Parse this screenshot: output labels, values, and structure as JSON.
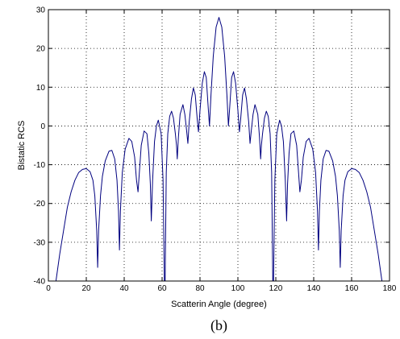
{
  "chart_data": {
    "type": "line",
    "title": "",
    "xlabel": "Scatterin Angle (degree)",
    "ylabel": "Bistatic RCS",
    "xlim": [
      0,
      180
    ],
    "ylim": [
      -40,
      30
    ],
    "xticks": [
      0,
      20,
      40,
      60,
      80,
      100,
      120,
      140,
      160,
      180
    ],
    "yticks": [
      -40,
      -30,
      -20,
      -10,
      0,
      10,
      20,
      30
    ],
    "grid": true,
    "grid_style": "dotted",
    "line_color": "#00007f",
    "series": [
      {
        "name": "",
        "points": [
          [
            4,
            -40
          ],
          [
            6,
            -33
          ],
          [
            8,
            -27
          ],
          [
            10,
            -21
          ],
          [
            12,
            -17
          ],
          [
            14,
            -14
          ],
          [
            16,
            -12
          ],
          [
            18,
            -11.2
          ],
          [
            20,
            -11
          ],
          [
            22,
            -11.8
          ],
          [
            23.5,
            -14
          ],
          [
            24.5,
            -18
          ],
          [
            25.5,
            -27
          ],
          [
            26,
            -36.5
          ],
          [
            26.5,
            -27
          ],
          [
            27.5,
            -18
          ],
          [
            28.5,
            -13
          ],
          [
            30,
            -9
          ],
          [
            32,
            -6.5
          ],
          [
            33.5,
            -6.3
          ],
          [
            35,
            -8.5
          ],
          [
            36.2,
            -14
          ],
          [
            37,
            -22
          ],
          [
            37.5,
            -32
          ],
          [
            38,
            -22
          ],
          [
            39,
            -12
          ],
          [
            40.5,
            -6
          ],
          [
            42.5,
            -3.2
          ],
          [
            44,
            -4
          ],
          [
            45.5,
            -8
          ],
          [
            46.5,
            -14
          ],
          [
            47.3,
            -17
          ],
          [
            48,
            -12
          ],
          [
            49,
            -5
          ],
          [
            50.5,
            -1.3
          ],
          [
            52,
            -2
          ],
          [
            53,
            -7
          ],
          [
            53.8,
            -15
          ],
          [
            54.3,
            -24.5
          ],
          [
            55,
            -14
          ],
          [
            56,
            -4
          ],
          [
            57,
            0
          ],
          [
            58,
            1.5
          ],
          [
            59.5,
            -2
          ],
          [
            60.5,
            -14
          ],
          [
            61.2,
            -40
          ],
          [
            61.6,
            -40
          ],
          [
            62.2,
            -12
          ],
          [
            63,
            -2
          ],
          [
            64,
            2.5
          ],
          [
            65,
            3.8
          ],
          [
            66,
            2
          ],
          [
            67,
            -2
          ],
          [
            67.6,
            -5
          ],
          [
            68,
            -8.5
          ],
          [
            68.6,
            -3
          ],
          [
            69.5,
            3
          ],
          [
            71,
            5.5
          ],
          [
            72,
            3
          ],
          [
            73,
            -1.5
          ],
          [
            73.6,
            -4.5
          ],
          [
            74.3,
            1
          ],
          [
            75.5,
            7
          ],
          [
            76.5,
            9.8
          ],
          [
            77.5,
            8
          ],
          [
            78.5,
            2
          ],
          [
            79.2,
            -1.5
          ],
          [
            80,
            4
          ],
          [
            81.2,
            11
          ],
          [
            82.3,
            14
          ],
          [
            83.3,
            12.5
          ],
          [
            84.3,
            5
          ],
          [
            85,
            0
          ],
          [
            85.8,
            8
          ],
          [
            87,
            18
          ],
          [
            88.5,
            25.5
          ],
          [
            90,
            28
          ],
          [
            91.5,
            25.5
          ],
          [
            93,
            18
          ],
          [
            94.2,
            8
          ],
          [
            95,
            0
          ],
          [
            95.7,
            5
          ],
          [
            96.7,
            12.5
          ],
          [
            97.7,
            14
          ],
          [
            98.8,
            11
          ],
          [
            100,
            4
          ],
          [
            100.8,
            -1.5
          ],
          [
            101.5,
            2
          ],
          [
            102.5,
            8
          ],
          [
            103.5,
            9.8
          ],
          [
            104.5,
            7
          ],
          [
            105.7,
            1
          ],
          [
            106.4,
            -4.5
          ],
          [
            107,
            -1.5
          ],
          [
            108,
            3
          ],
          [
            109,
            5.5
          ],
          [
            110.5,
            3
          ],
          [
            111.4,
            -3
          ],
          [
            112,
            -8.5
          ],
          [
            112.4,
            -5
          ],
          [
            113,
            -2
          ],
          [
            114,
            2
          ],
          [
            115,
            3.8
          ],
          [
            116,
            2.5
          ],
          [
            117,
            -2
          ],
          [
            117.8,
            -12
          ],
          [
            118.4,
            -40
          ],
          [
            118.8,
            -40
          ],
          [
            119.5,
            -14
          ],
          [
            120.5,
            -2
          ],
          [
            122,
            1.5
          ],
          [
            123,
            0
          ],
          [
            124,
            -4
          ],
          [
            125,
            -14
          ],
          [
            125.7,
            -24.5
          ],
          [
            126.2,
            -15
          ],
          [
            127,
            -7
          ],
          [
            128,
            -2
          ],
          [
            129.5,
            -1.3
          ],
          [
            131,
            -5
          ],
          [
            132,
            -12
          ],
          [
            132.7,
            -17
          ],
          [
            133.5,
            -14
          ],
          [
            134.5,
            -8
          ],
          [
            136,
            -4
          ],
          [
            137.5,
            -3.2
          ],
          [
            139.5,
            -6
          ],
          [
            141,
            -12
          ],
          [
            142,
            -22
          ],
          [
            142.5,
            -32
          ],
          [
            143,
            -22
          ],
          [
            143.8,
            -14
          ],
          [
            145,
            -8.5
          ],
          [
            146.5,
            -6.3
          ],
          [
            148,
            -6.5
          ],
          [
            150,
            -9
          ],
          [
            151.5,
            -13
          ],
          [
            152.5,
            -18
          ],
          [
            153.5,
            -27
          ],
          [
            154,
            -36.5
          ],
          [
            154.5,
            -27
          ],
          [
            155.5,
            -18
          ],
          [
            156.5,
            -14
          ],
          [
            158,
            -11.8
          ],
          [
            160,
            -11
          ],
          [
            162,
            -11.2
          ],
          [
            164,
            -12
          ],
          [
            166,
            -14
          ],
          [
            168,
            -17
          ],
          [
            170,
            -21
          ],
          [
            172,
            -27
          ],
          [
            174,
            -33
          ],
          [
            176,
            -40
          ]
        ]
      }
    ]
  },
  "caption": "(b)"
}
